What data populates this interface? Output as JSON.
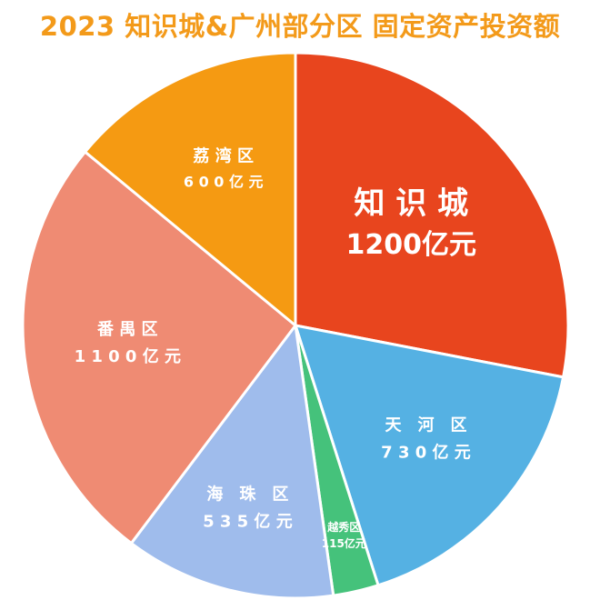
{
  "title": "2023 知识城&广州部分区 固定资产投资额",
  "colors": {
    "title": "#f39a1a",
    "slice_border": "#ffffff",
    "label": "#ffffff"
  },
  "chart_data": {
    "type": "pie",
    "title": "2023 知识城&广州部分区 固定资产投资额",
    "unit": "亿元",
    "slices": [
      {
        "name": "知 识 城",
        "value": 1200,
        "value_label": "1200亿元",
        "color": "#e8451e"
      },
      {
        "name": "天　河　区",
        "value": 730,
        "value_label": "7 3 0 亿 元",
        "color": "#55b1e3"
      },
      {
        "name": "越秀区",
        "value": 115,
        "value_label": "115亿元",
        "color": "#45c27b"
      },
      {
        "name": "海　珠　区",
        "value": 535,
        "value_label": "5 3 5 亿 元",
        "color": "#9fbcec"
      },
      {
        "name": "番 禺 区",
        "value": 1100,
        "value_label": "1 1 0 0 亿 元",
        "color": "#ef8b73"
      },
      {
        "name": "荔 湾 区",
        "value": 600,
        "value_label": "6 0 0 亿 元",
        "color": "#f59a12"
      }
    ]
  }
}
